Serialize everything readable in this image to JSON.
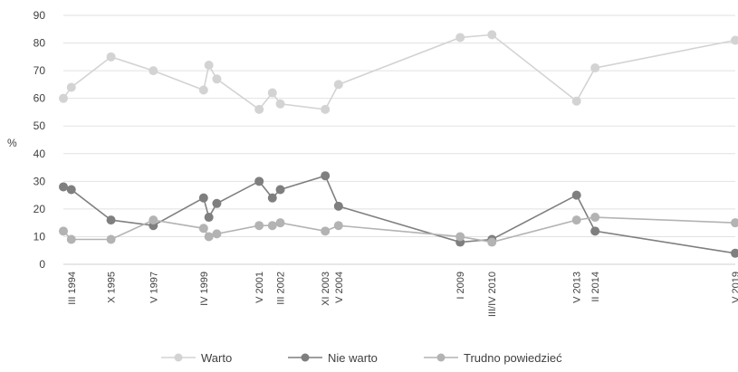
{
  "chart_data": {
    "type": "line",
    "title": "",
    "xlabel": "",
    "ylabel": "%",
    "ylim": [
      0,
      90
    ],
    "y_ticks": [
      0,
      10,
      20,
      30,
      40,
      50,
      60,
      70,
      80,
      90
    ],
    "grid": true,
    "legend_position": "bottom",
    "x_ticks": [
      {
        "at": 1994.3,
        "label": "III 1994"
      },
      {
        "at": 1995.8,
        "label": "X 1995"
      },
      {
        "at": 1997.4,
        "label": "V 1997"
      },
      {
        "at": 1999.3,
        "label": "IV 1999"
      },
      {
        "at": 2001.4,
        "label": "V 2001"
      },
      {
        "at": 2002.2,
        "label": "III 2002"
      },
      {
        "at": 2003.9,
        "label": "XI 2003"
      },
      {
        "at": 2004.4,
        "label": "V 2004"
      },
      {
        "at": 2009.0,
        "label": "I 2009"
      },
      {
        "at": 2010.2,
        "label": "III/IV 2010"
      },
      {
        "at": 2013.4,
        "label": "V 2013"
      },
      {
        "at": 2014.1,
        "label": "II 2014"
      },
      {
        "at": 2019.4,
        "label": "V 2019"
      }
    ],
    "x": [
      1994.0,
      1994.3,
      1995.8,
      1997.4,
      1999.3,
      1999.5,
      1999.8,
      2001.4,
      2001.9,
      2002.2,
      2003.9,
      2004.4,
      2009.0,
      2010.2,
      2013.4,
      2014.1,
      2019.4
    ],
    "series": [
      {
        "name": "Warto",
        "color": "#d3d3d3",
        "values": [
          60,
          64,
          75,
          70,
          63,
          72,
          67,
          56,
          62,
          58,
          56,
          65,
          82,
          83,
          59,
          71,
          81
        ]
      },
      {
        "name": "Nie warto",
        "color": "#7f7f7f",
        "values": [
          28,
          27,
          16,
          14,
          24,
          17,
          22,
          30,
          24,
          27,
          32,
          21,
          8,
          9,
          25,
          12,
          4
        ]
      },
      {
        "name": "Trudno powiedzieć",
        "color": "#b3b3b3",
        "values": [
          12,
          9,
          9,
          16,
          13,
          10,
          11,
          14,
          14,
          15,
          12,
          14,
          10,
          8,
          16,
          17,
          15
        ]
      }
    ]
  }
}
